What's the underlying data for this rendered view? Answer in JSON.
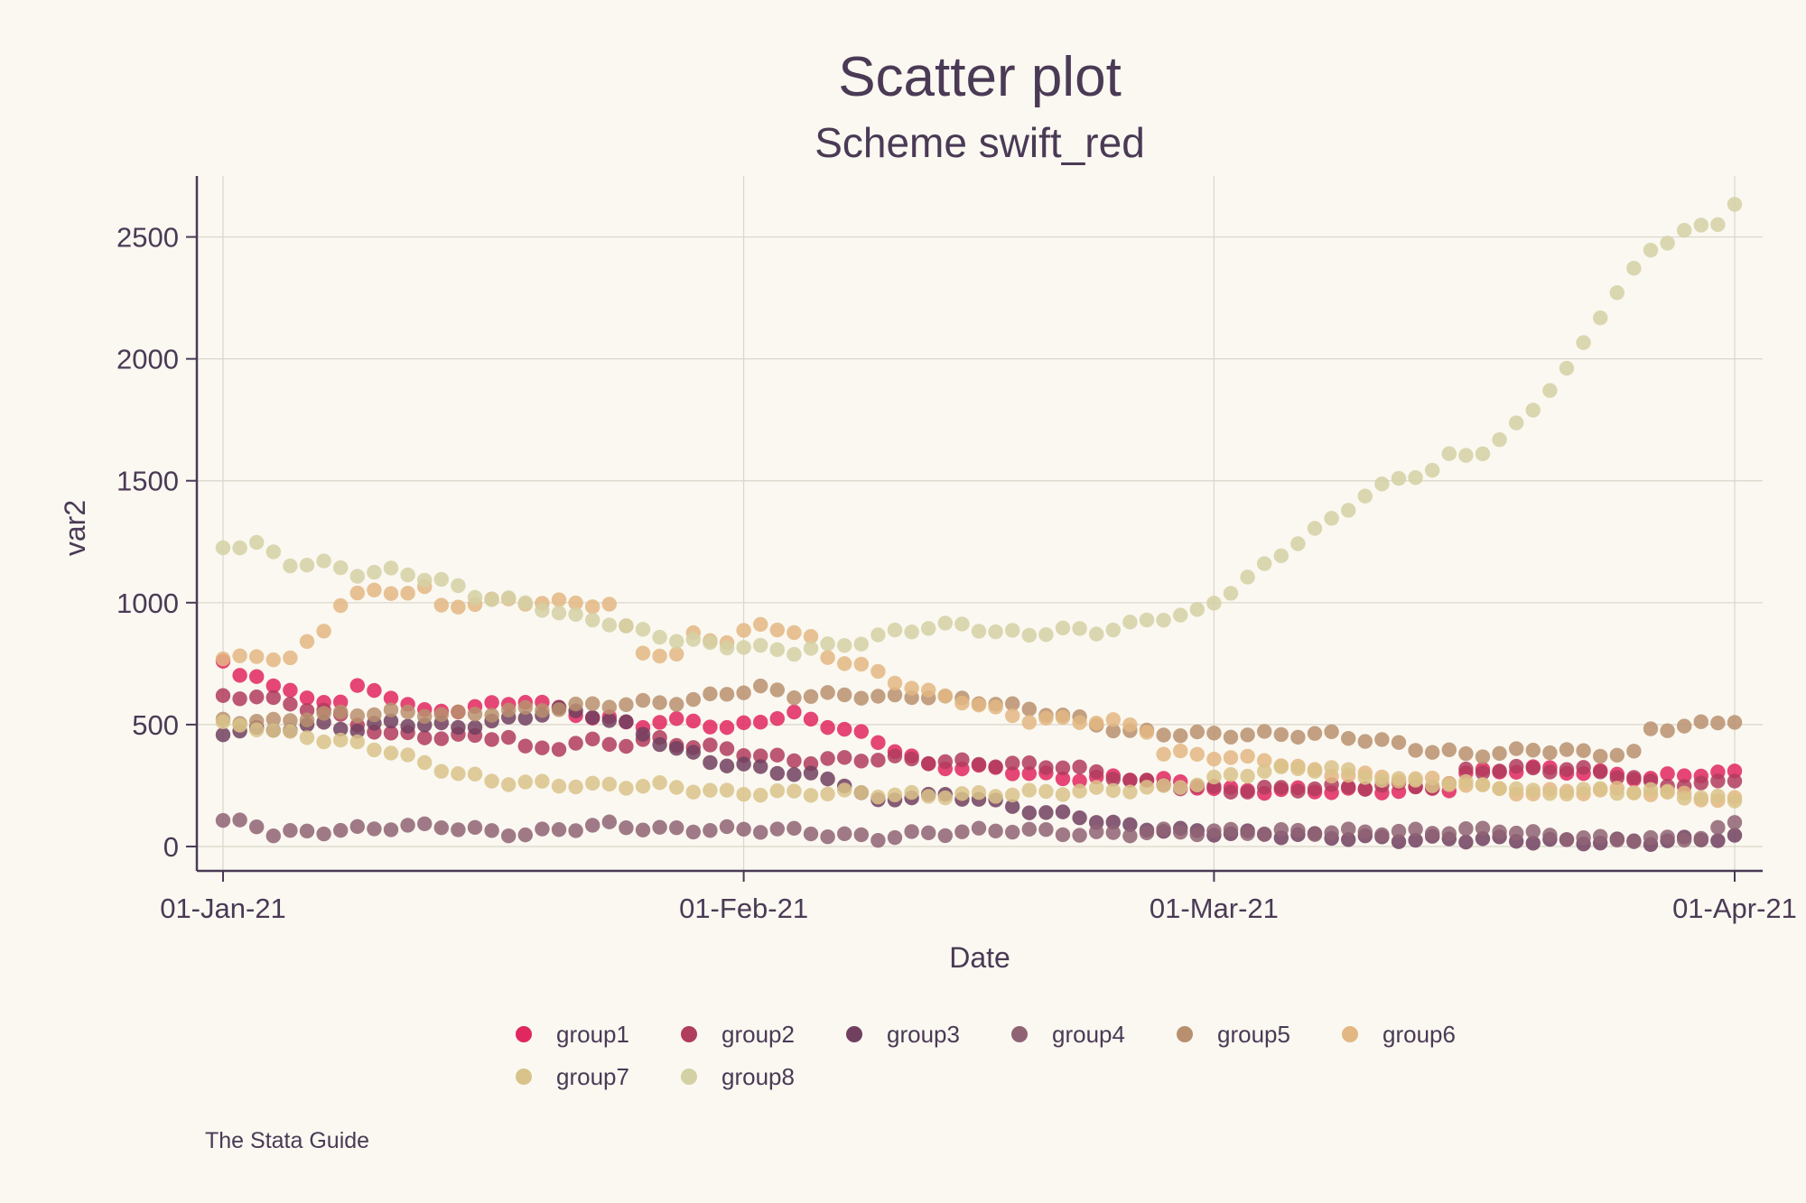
{
  "chart_data": {
    "type": "scatter",
    "title": "Scatter plot",
    "subtitle": "Scheme swift_red",
    "xlabel": "Date",
    "ylabel": "var2",
    "note": "The Stata Guide",
    "x_start": "2021-01-01",
    "xlim": [
      0,
      90
    ],
    "ylim": [
      -100,
      2750
    ],
    "x_ticks": [
      {
        "value": 0,
        "label": "01-Jan-21"
      },
      {
        "value": 31,
        "label": "01-Feb-21"
      },
      {
        "value": 59,
        "label": "01-Mar-21"
      },
      {
        "value": 90,
        "label": "01-Apr-21"
      }
    ],
    "y_ticks": [
      {
        "value": 0,
        "label": "0"
      },
      {
        "value": 500,
        "label": "500"
      },
      {
        "value": 1000,
        "label": "1000"
      },
      {
        "value": 1500,
        "label": "1500"
      },
      {
        "value": 2000,
        "label": "2000"
      },
      {
        "value": 2500,
        "label": "2500"
      }
    ],
    "legend": {
      "position": "bottom",
      "columns": 6
    },
    "series": [
      {
        "name": "group1",
        "color": "#e0275f",
        "anchors": [
          [
            0,
            760
          ],
          [
            1,
            690
          ],
          [
            2,
            700
          ],
          [
            3,
            670
          ],
          [
            5,
            600
          ],
          [
            7,
            600
          ],
          [
            8,
            650
          ],
          [
            10,
            620
          ],
          [
            12,
            550
          ],
          [
            15,
            570
          ],
          [
            18,
            600
          ],
          [
            22,
            530
          ],
          [
            25,
            500
          ],
          [
            28,
            520
          ],
          [
            30,
            480
          ],
          [
            32,
            520
          ],
          [
            34,
            540
          ],
          [
            36,
            500
          ],
          [
            38,
            460
          ],
          [
            40,
            400
          ],
          [
            42,
            330
          ],
          [
            46,
            320
          ],
          [
            50,
            280
          ],
          [
            55,
            280
          ],
          [
            60,
            230
          ],
          [
            65,
            230
          ],
          [
            70,
            230
          ],
          [
            73,
            240
          ],
          [
            74,
            300
          ],
          [
            78,
            320
          ],
          [
            82,
            300
          ],
          [
            85,
            280
          ],
          [
            88,
            300
          ],
          [
            90,
            300
          ]
        ]
      },
      {
        "name": "group2",
        "color": "#b03c5e",
        "anchors": [
          [
            0,
            610
          ],
          [
            2,
            620
          ],
          [
            4,
            580
          ],
          [
            6,
            560
          ],
          [
            8,
            500
          ],
          [
            10,
            460
          ],
          [
            13,
            450
          ],
          [
            17,
            450
          ],
          [
            18,
            400
          ],
          [
            20,
            410
          ],
          [
            22,
            430
          ],
          [
            24,
            420
          ],
          [
            26,
            440
          ],
          [
            28,
            410
          ],
          [
            30,
            400
          ],
          [
            32,
            370
          ],
          [
            35,
            350
          ],
          [
            38,
            360
          ],
          [
            40,
            360
          ],
          [
            45,
            340
          ],
          [
            50,
            330
          ],
          [
            55,
            260
          ],
          [
            60,
            230
          ],
          [
            65,
            240
          ],
          [
            70,
            250
          ],
          [
            73,
            250
          ],
          [
            74,
            310
          ],
          [
            78,
            320
          ],
          [
            82,
            310
          ],
          [
            85,
            260
          ],
          [
            88,
            250
          ],
          [
            90,
            280
          ]
        ]
      },
      {
        "name": "group3",
        "color": "#71405f",
        "anchors": [
          [
            0,
            470
          ],
          [
            3,
            480
          ],
          [
            6,
            500
          ],
          [
            8,
            480
          ],
          [
            10,
            510
          ],
          [
            14,
            490
          ],
          [
            17,
            520
          ],
          [
            20,
            560
          ],
          [
            22,
            540
          ],
          [
            24,
            500
          ],
          [
            25,
            460
          ],
          [
            27,
            400
          ],
          [
            29,
            350
          ],
          [
            31,
            330
          ],
          [
            33,
            310
          ],
          [
            35,
            290
          ],
          [
            37,
            260
          ],
          [
            38,
            220
          ],
          [
            39,
            180
          ],
          [
            41,
            210
          ],
          [
            45,
            200
          ],
          [
            47,
            160
          ],
          [
            50,
            130
          ],
          [
            52,
            110
          ],
          [
            54,
            80
          ],
          [
            58,
            60
          ],
          [
            62,
            50
          ],
          [
            66,
            40
          ],
          [
            70,
            30
          ],
          [
            75,
            30
          ],
          [
            80,
            20
          ],
          [
            85,
            20
          ],
          [
            88,
            30
          ],
          [
            90,
            40
          ]
        ]
      },
      {
        "name": "group4",
        "color": "#8f6374",
        "anchors": [
          [
            0,
            100
          ],
          [
            1,
            100
          ],
          [
            2,
            90
          ],
          [
            3,
            50
          ],
          [
            5,
            60
          ],
          [
            8,
            70
          ],
          [
            10,
            80
          ],
          [
            13,
            85
          ],
          [
            16,
            60
          ],
          [
            18,
            50
          ],
          [
            20,
            70
          ],
          [
            23,
            90
          ],
          [
            26,
            70
          ],
          [
            30,
            70
          ],
          [
            33,
            70
          ],
          [
            36,
            50
          ],
          [
            38,
            40
          ],
          [
            39,
            35
          ],
          [
            41,
            50
          ],
          [
            44,
            60
          ],
          [
            47,
            70
          ],
          [
            49,
            60
          ],
          [
            52,
            50
          ],
          [
            56,
            60
          ],
          [
            60,
            60
          ],
          [
            64,
            60
          ],
          [
            68,
            60
          ],
          [
            72,
            60
          ],
          [
            76,
            70
          ],
          [
            78,
            50
          ],
          [
            82,
            30
          ],
          [
            86,
            30
          ],
          [
            88,
            40
          ],
          [
            90,
            95
          ]
        ]
      },
      {
        "name": "group5",
        "color": "#b8906f",
        "anchors": [
          [
            0,
            520
          ],
          [
            3,
            510
          ],
          [
            6,
            540
          ],
          [
            10,
            550
          ],
          [
            14,
            540
          ],
          [
            18,
            560
          ],
          [
            22,
            580
          ],
          [
            26,
            590
          ],
          [
            28,
            600
          ],
          [
            30,
            630
          ],
          [
            32,
            650
          ],
          [
            34,
            620
          ],
          [
            38,
            620
          ],
          [
            40,
            610
          ],
          [
            42,
            620
          ],
          [
            44,
            600
          ],
          [
            46,
            590
          ],
          [
            48,
            560
          ],
          [
            50,
            540
          ],
          [
            52,
            500
          ],
          [
            54,
            470
          ],
          [
            58,
            460
          ],
          [
            62,
            460
          ],
          [
            66,
            460
          ],
          [
            68,
            440
          ],
          [
            70,
            420
          ],
          [
            72,
            390
          ],
          [
            74,
            380
          ],
          [
            76,
            380
          ],
          [
            78,
            400
          ],
          [
            80,
            390
          ],
          [
            82,
            380
          ],
          [
            84,
            380
          ],
          [
            85,
            480
          ],
          [
            88,
            500
          ],
          [
            90,
            520
          ]
        ]
      },
      {
        "name": "group6",
        "color": "#e3b783",
        "anchors": [
          [
            0,
            780
          ],
          [
            2,
            770
          ],
          [
            4,
            780
          ],
          [
            6,
            880
          ],
          [
            7,
            1000
          ],
          [
            8,
            1040
          ],
          [
            10,
            1040
          ],
          [
            12,
            1060
          ],
          [
            13,
            980
          ],
          [
            15,
            1000
          ],
          [
            17,
            1010
          ],
          [
            19,
            1000
          ],
          [
            21,
            1000
          ],
          [
            23,
            990
          ],
          [
            25,
            800
          ],
          [
            27,
            780
          ],
          [
            28,
            870
          ],
          [
            30,
            840
          ],
          [
            32,
            910
          ],
          [
            33,
            900
          ],
          [
            35,
            850
          ],
          [
            36,
            780
          ],
          [
            38,
            740
          ],
          [
            40,
            680
          ],
          [
            42,
            630
          ],
          [
            44,
            600
          ],
          [
            46,
            560
          ],
          [
            48,
            520
          ],
          [
            50,
            520
          ],
          [
            53,
            510
          ],
          [
            55,
            480
          ],
          [
            56,
            380
          ],
          [
            58,
            380
          ],
          [
            60,
            360
          ],
          [
            62,
            360
          ],
          [
            64,
            320
          ],
          [
            66,
            300
          ],
          [
            70,
            280
          ],
          [
            74,
            260
          ],
          [
            76,
            230
          ],
          [
            78,
            220
          ],
          [
            82,
            230
          ],
          [
            86,
            220
          ],
          [
            88,
            200
          ],
          [
            90,
            190
          ]
        ]
      },
      {
        "name": "group7",
        "color": "#d9c38a",
        "anchors": [
          [
            0,
            500
          ],
          [
            2,
            490
          ],
          [
            4,
            460
          ],
          [
            8,
            420
          ],
          [
            10,
            390
          ],
          [
            12,
            340
          ],
          [
            14,
            300
          ],
          [
            16,
            270
          ],
          [
            18,
            260
          ],
          [
            22,
            250
          ],
          [
            26,
            250
          ],
          [
            30,
            220
          ],
          [
            32,
            220
          ],
          [
            36,
            220
          ],
          [
            38,
            220
          ],
          [
            40,
            210
          ],
          [
            44,
            210
          ],
          [
            48,
            220
          ],
          [
            52,
            230
          ],
          [
            56,
            240
          ],
          [
            58,
            260
          ],
          [
            60,
            290
          ],
          [
            62,
            310
          ],
          [
            64,
            320
          ],
          [
            66,
            320
          ],
          [
            68,
            290
          ],
          [
            70,
            270
          ],
          [
            72,
            260
          ],
          [
            76,
            250
          ],
          [
            78,
            220
          ],
          [
            82,
            230
          ],
          [
            86,
            220
          ],
          [
            88,
            200
          ],
          [
            90,
            190
          ]
        ]
      },
      {
        "name": "group8",
        "color": "#d3d0a3",
        "anchors": [
          [
            0,
            1230
          ],
          [
            2,
            1240
          ],
          [
            4,
            1160
          ],
          [
            6,
            1160
          ],
          [
            8,
            1120
          ],
          [
            10,
            1130
          ],
          [
            13,
            1090
          ],
          [
            15,
            1030
          ],
          [
            17,
            1010
          ],
          [
            19,
            980
          ],
          [
            21,
            940
          ],
          [
            23,
            920
          ],
          [
            25,
            880
          ],
          [
            27,
            850
          ],
          [
            29,
            830
          ],
          [
            31,
            820
          ],
          [
            34,
            800
          ],
          [
            36,
            820
          ],
          [
            38,
            840
          ],
          [
            40,
            880
          ],
          [
            42,
            900
          ],
          [
            44,
            910
          ],
          [
            46,
            880
          ],
          [
            48,
            870
          ],
          [
            50,
            890
          ],
          [
            52,
            880
          ],
          [
            54,
            910
          ],
          [
            56,
            940
          ],
          [
            58,
            960
          ],
          [
            59,
            1000
          ],
          [
            60,
            1050
          ],
          [
            62,
            1150
          ],
          [
            64,
            1250
          ],
          [
            66,
            1340
          ],
          [
            68,
            1440
          ],
          [
            70,
            1510
          ],
          [
            72,
            1540
          ],
          [
            73,
            1600
          ],
          [
            75,
            1620
          ],
          [
            76,
            1660
          ],
          [
            78,
            1800
          ],
          [
            80,
            1950
          ],
          [
            82,
            2180
          ],
          [
            84,
            2360
          ],
          [
            85,
            2450
          ],
          [
            87,
            2520
          ],
          [
            89,
            2560
          ],
          [
            90,
            2640
          ]
        ]
      }
    ]
  }
}
